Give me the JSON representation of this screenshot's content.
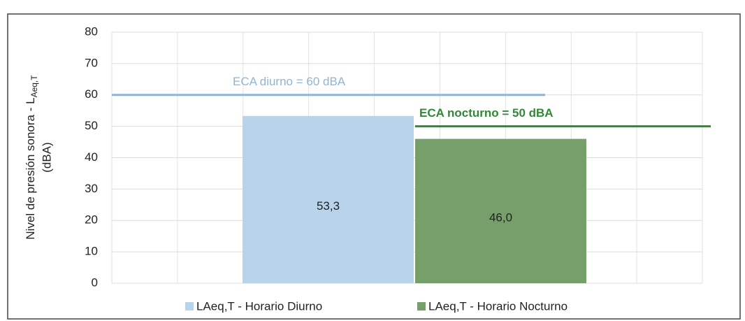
{
  "chart_data": {
    "type": "bar",
    "y_label": "Nivel de presión sonora - L",
    "y_label_sub": "Aeq,T",
    "y_label_line2": "(dBA)",
    "series": [
      {
        "name": "LAeq,T - Horario Diurno",
        "color": "#b8d3ea",
        "values": [
          53.3
        ],
        "value_labels": [
          "53,3"
        ]
      },
      {
        "name": "LAeq,T - Horario Nocturno",
        "color": "#779f6c",
        "values": [
          46.0
        ],
        "value_labels": [
          "46,0"
        ]
      }
    ],
    "reference_lines": [
      {
        "label": "ECA diurno = 60 dBA",
        "value": 60,
        "color": "#8fb4d6"
      },
      {
        "label": "ECA nocturno = 50 dBA",
        "value": 50,
        "color": "#2e8b34"
      }
    ],
    "ylim": [
      0,
      80
    ],
    "yticks": [
      0,
      10,
      20,
      30,
      40,
      50,
      60,
      70,
      80
    ],
    "grid": true,
    "legend": "bottom"
  }
}
